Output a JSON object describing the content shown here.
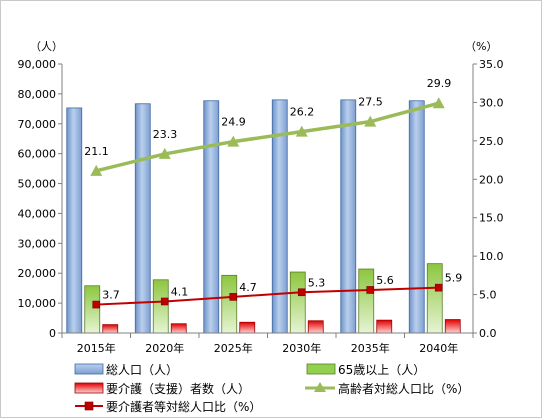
{
  "chart_data": {
    "type": "bar",
    "categories": [
      "2015年",
      "2020年",
      "2025年",
      "2030年",
      "2035年",
      "2040年"
    ],
    "left_axis": {
      "unit": "（人）",
      "min": 0,
      "max": 90000,
      "step": 10000,
      "tick_labels": [
        "0",
        "10,000",
        "20,000",
        "30,000",
        "40,000",
        "50,000",
        "60,000",
        "70,000",
        "80,000",
        "90,000"
      ]
    },
    "right_axis": {
      "unit": "（%）",
      "min": 0,
      "max": 35,
      "step": 5,
      "tick_labels": [
        "0.0",
        "5.0",
        "10.0",
        "15.0",
        "20.0",
        "25.0",
        "30.0",
        "35.0"
      ]
    },
    "grid": false,
    "legend_position": "bottom",
    "series": [
      {
        "name": "総人口（人）",
        "type": "bar",
        "axis": "left",
        "color": "#8eb4e3",
        "values": [
          75300,
          76700,
          77700,
          78000,
          78000,
          77700
        ]
      },
      {
        "name": "65歳以上（人）",
        "type": "bar",
        "axis": "left",
        "color": "#92d050",
        "values": [
          15800,
          17800,
          19300,
          20400,
          21400,
          23200
        ]
      },
      {
        "name": "要介護（支援）者数（人）",
        "type": "bar",
        "axis": "left",
        "color": "#ff0000",
        "values": [
          2800,
          3100,
          3600,
          4100,
          4300,
          4500
        ]
      },
      {
        "name": "高齢者対総人口比（%）",
        "type": "line",
        "axis": "right",
        "color": "#9bbb59",
        "marker": "triangle",
        "values": [
          21.1,
          23.3,
          24.9,
          26.2,
          27.5,
          29.9
        ],
        "labels": [
          "21.1",
          "23.3",
          "24.9",
          "26.2",
          "27.5",
          "29.9"
        ]
      },
      {
        "name": "要介護者等対総人口比（%）",
        "type": "line",
        "axis": "right",
        "color": "#c00000",
        "marker": "square",
        "values": [
          3.7,
          4.1,
          4.7,
          5.3,
          5.6,
          5.9
        ],
        "labels": [
          "3.7",
          "4.1",
          "4.7",
          "5.3",
          "5.6",
          "5.9"
        ]
      }
    ]
  }
}
